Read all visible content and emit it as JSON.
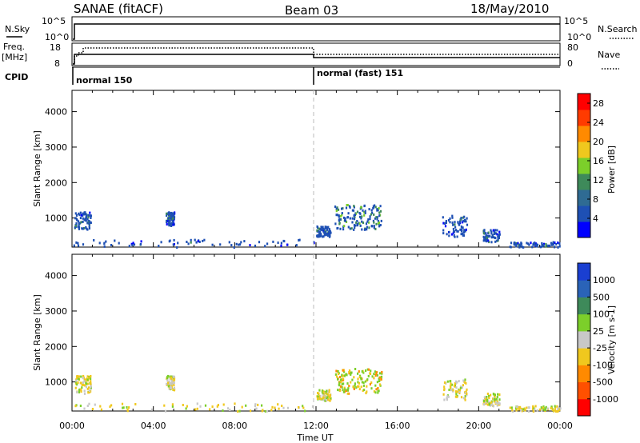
{
  "header": {
    "title": "SANAE (fitACF)",
    "beam": "Beam 03",
    "date": "18/May/2010"
  },
  "strips": {
    "nsky_label": "N.Sky",
    "nsky_ticks": [
      "10^5",
      "10^0"
    ],
    "nsearch_label": "N.Search",
    "nsearch_ticks": [
      "10^5",
      "10^0"
    ],
    "freq_label_1": "Freq.",
    "freq_label_2": "[MHz]",
    "freq_ticks": [
      "18",
      "8"
    ],
    "nave_label": "Nave",
    "nave_ticks": [
      "80",
      "0"
    ],
    "cpid_label": "CPID",
    "cpid_segments": [
      {
        "label": "normal 150",
        "start_hour": 0
      },
      {
        "label": "normal (fast) 151",
        "start_hour": 12
      }
    ]
  },
  "chart_data": [
    {
      "type": "heatmap",
      "name": "power",
      "ylabel": "Slant Range [km]",
      "xlabel": "",
      "yticks": [
        "1000",
        "2000",
        "3000",
        "4000"
      ],
      "xlim_hours": [
        0,
        24
      ],
      "ylim_km": [
        180,
        4600
      ],
      "colorbar": {
        "label": "Power [dB]",
        "ticks": [
          "4",
          "8",
          "12",
          "16",
          "20",
          "24",
          "28"
        ],
        "range": [
          0,
          30
        ],
        "colors": [
          "#0000ff",
          "#1e50b4",
          "#2f6b93",
          "#3e8a5a",
          "#7ccf2a",
          "#f0c81e",
          "#ff8a00",
          "#ff3b00",
          "#ff0000"
        ]
      },
      "patches": [
        {
          "t0": 0.0,
          "t1": 11.9,
          "r0": 200,
          "r1": 420,
          "level": "low"
        },
        {
          "t0": 0.1,
          "t1": 0.9,
          "r0": 700,
          "r1": 1200,
          "level": "low"
        },
        {
          "t0": 4.6,
          "t1": 5.0,
          "r0": 800,
          "r1": 1200,
          "level": "low"
        },
        {
          "t0": 12.0,
          "t1": 12.7,
          "r0": 500,
          "r1": 800,
          "level": "low"
        },
        {
          "t0": 12.9,
          "t1": 15.2,
          "r0": 700,
          "r1": 1400,
          "level": "mid"
        },
        {
          "t0": 18.2,
          "t1": 19.4,
          "r0": 500,
          "r1": 1100,
          "level": "low"
        },
        {
          "t0": 20.2,
          "t1": 21.0,
          "r0": 350,
          "r1": 700,
          "level": "low"
        },
        {
          "t0": 21.5,
          "t1": 24.0,
          "r0": 200,
          "r1": 350,
          "level": "low"
        }
      ]
    },
    {
      "type": "heatmap",
      "name": "velocity",
      "ylabel": "Slant Range [km]",
      "xlabel": "Time UT",
      "xticks": [
        "00:00",
        "04:00",
        "08:00",
        "12:00",
        "16:00",
        "20:00",
        "00:00"
      ],
      "yticks": [
        "1000",
        "2000",
        "3000",
        "4000"
      ],
      "xlim_hours": [
        0,
        24
      ],
      "ylim_km": [
        180,
        4600
      ],
      "colorbar": {
        "label": "Velocity [m s-1]",
        "ticks": [
          "1000",
          "500",
          "100",
          "25",
          "-25",
          "-100",
          "-500",
          "-1000"
        ],
        "colors": [
          "#1a3fd1",
          "#2a63b8",
          "#3e8a5a",
          "#7ccf2a",
          "#c8c8c8",
          "#f0c81e",
          "#ff8a00",
          "#ff5000",
          "#ff0000"
        ]
      },
      "patches": [
        {
          "t0": 0.0,
          "t1": 11.9,
          "r0": 200,
          "r1": 420,
          "level": "low"
        },
        {
          "t0": 0.1,
          "t1": 0.9,
          "r0": 700,
          "r1": 1200,
          "level": "low"
        },
        {
          "t0": 4.6,
          "t1": 5.0,
          "r0": 800,
          "r1": 1200,
          "level": "low"
        },
        {
          "t0": 12.0,
          "t1": 12.7,
          "r0": 500,
          "r1": 800,
          "level": "low"
        },
        {
          "t0": 12.9,
          "t1": 15.2,
          "r0": 700,
          "r1": 1400,
          "level": "mid"
        },
        {
          "t0": 18.2,
          "t1": 19.4,
          "r0": 500,
          "r1": 1100,
          "level": "low"
        },
        {
          "t0": 20.2,
          "t1": 21.0,
          "r0": 350,
          "r1": 700,
          "level": "low"
        },
        {
          "t0": 21.5,
          "t1": 24.0,
          "r0": 200,
          "r1": 350,
          "level": "low"
        }
      ]
    }
  ]
}
